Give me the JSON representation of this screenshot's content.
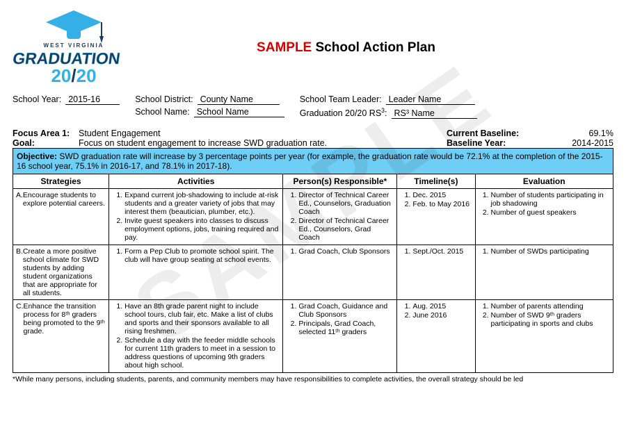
{
  "title": {
    "red": "SAMPLE",
    "rest": " School Action Plan"
  },
  "watermark": "SAMPLE",
  "logo": {
    "top": "WEST VIRGINIA",
    "main": "GRADUATION",
    "sub": "20/20",
    "colors": {
      "navy": "#1a3a5c",
      "blue": "#35b0e6",
      "light": "#7dd0ee"
    }
  },
  "info": {
    "school_year": {
      "label": "School Year:",
      "value": "2015-16"
    },
    "school_district": {
      "label": "School District:",
      "value": "County Name"
    },
    "school_name": {
      "label": "School Name:",
      "value": "School Name"
    },
    "team_leader": {
      "label": "School Team Leader:",
      "value": "Leader Name"
    },
    "rs3": {
      "label": "Graduation 20/20 RS",
      "sup": "3",
      "value": "RS³ Name"
    }
  },
  "focus": {
    "area_label": "Focus Area 1:",
    "area_value": "Student Engagement",
    "goal_label": "Goal:",
    "goal_value": "Focus on student engagement to increase SWD graduation rate.",
    "baseline_label": "Current Baseline:",
    "baseline_value": "69.1%",
    "baseline_year_label": "Baseline Year:",
    "baseline_year_value": "2014-2015"
  },
  "objective": {
    "label": "Objective:",
    "text": " SWD graduation rate will increase by 3 percentage points per year (for example, the graduation rate would be 72.1% at the completion of the 2015-16 school year, 75.1% in 2016-17, and 78.1% in 2017-18)."
  },
  "columns": [
    "Strategies",
    "Activities",
    "Person(s) Responsible*",
    "Timeline(s)",
    "Evaluation"
  ],
  "rows": [
    {
      "strategy_letter": "A.",
      "strategy": "Encourage students to explore potential careers.",
      "activities": [
        "Expand current job-shadowing to include at-risk students and a greater variety of jobs that may interest them (beautician, plumber, etc.).",
        "Invite guest speakers into classes to discuss employment options, jobs, training required and pay."
      ],
      "responsible": [
        "Director of Technical Career Ed., Counselors, Graduation Coach",
        "Director of Technical Career Ed., Counselors, Grad Coach"
      ],
      "timelines": [
        "Dec. 2015",
        "Feb. to May 2016"
      ],
      "evaluation": [
        "Number of students participating in job shadowing",
        "Number of guest speakers"
      ]
    },
    {
      "strategy_letter": "B.",
      "strategy": "Create a more positive school climate for SWD students by adding student organizations that are appropriate for all students.",
      "activities": [
        "Form a Pep Club to promote school spirit. The club will have group seating at school events."
      ],
      "responsible": [
        "Grad Coach, Club Sponsors"
      ],
      "timelines": [
        "Sept./Oct. 2015"
      ],
      "evaluation": [
        "Number of SWDs participating"
      ]
    },
    {
      "strategy_letter": "C.",
      "strategy": "Enhance the transition process for 8ᵗʰ graders being promoted to the 9ᵗʰ grade.",
      "activities": [
        "Have an 8th grade parent night to include school tours, club fair, etc. Make a list of clubs and sports and their sponsors available to all rising freshmen.",
        "Schedule a day with the feeder middle schools for current 11th graders to meet in a session to address questions of upcoming 9th graders about high school."
      ],
      "responsible": [
        "Grad Coach, Guidance and Club Sponsors",
        "Principals, Grad Coach, selected 11ᵗʰ graders"
      ],
      "timelines": [
        "Aug. 2015",
        "June 2016"
      ],
      "evaluation": [
        "Number of parents attending",
        "Number of SWD 9ᵗʰ graders participating in sports and clubs"
      ]
    }
  ],
  "footnote": "*While many persons, including students, parents, and community members may have responsibilities to complete activities, the overall strategy should be led"
}
